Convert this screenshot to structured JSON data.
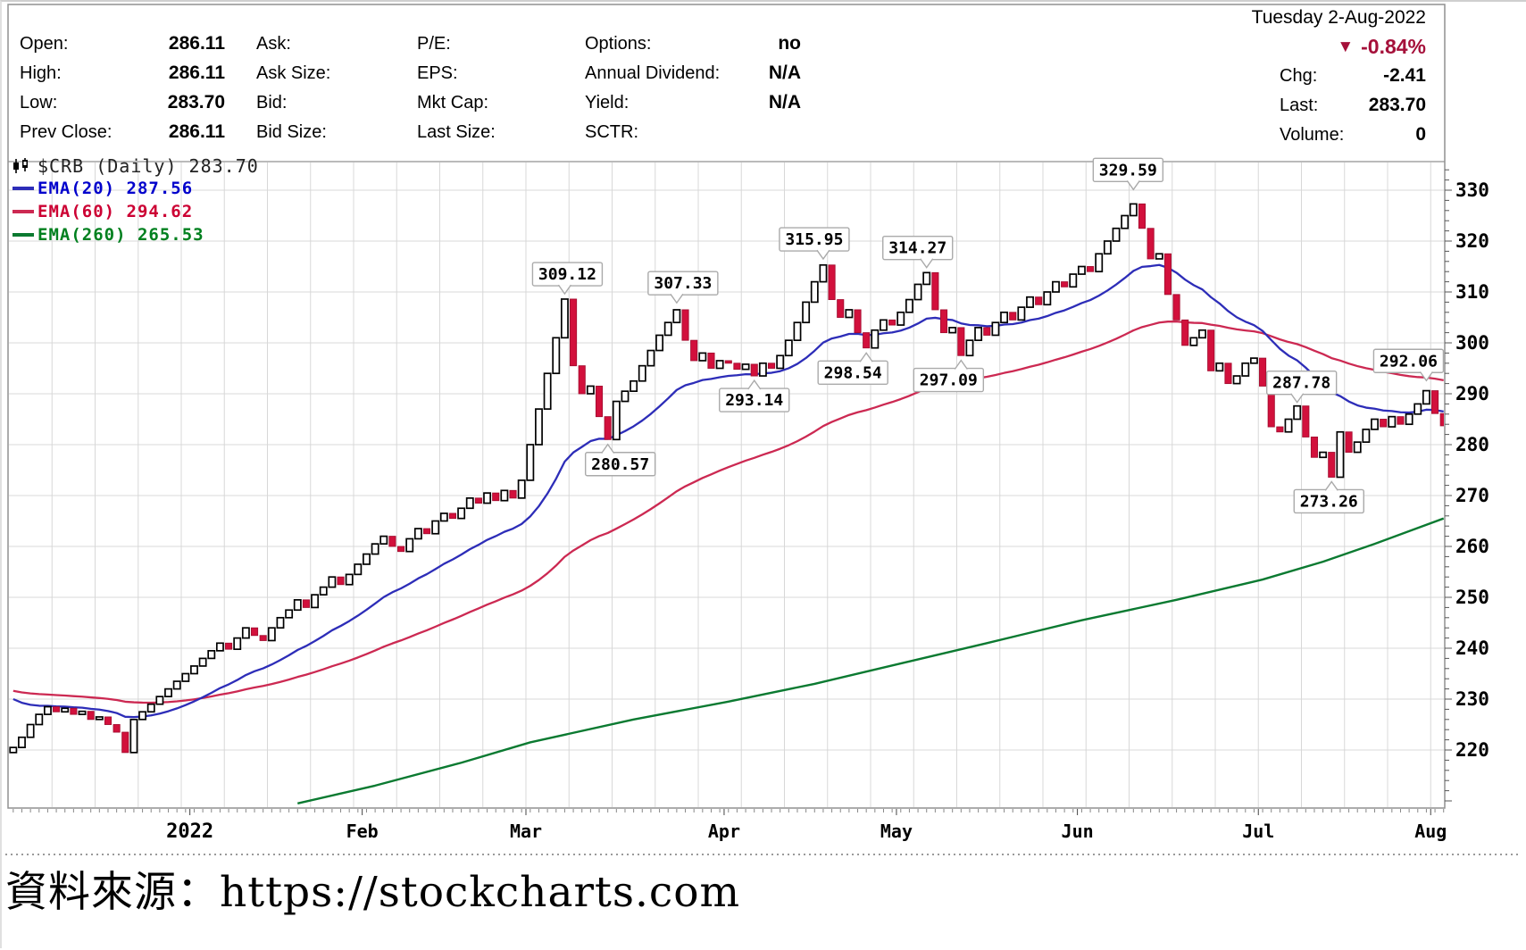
{
  "header": {
    "date": "Tuesday 2-Aug-2022",
    "change_pct": "-0.84%",
    "down_color": "#a5103a",
    "chg_label": "Chg:",
    "chg_value": "-2.41",
    "last_label": "Last:",
    "last_value": "283.70",
    "volume_label": "Volume:",
    "volume_value": "0",
    "quote_fields": [
      {
        "label": "Open:",
        "value": "286.11"
      },
      {
        "label": "High:",
        "value": "286.11"
      },
      {
        "label": "Low:",
        "value": "283.70"
      },
      {
        "label": "Prev Close:",
        "value": "286.11"
      },
      {
        "label": "Ask:",
        "value": ""
      },
      {
        "label": "Ask Size:",
        "value": ""
      },
      {
        "label": "Bid:",
        "value": ""
      },
      {
        "label": "Bid Size:",
        "value": ""
      },
      {
        "label": "P/E:",
        "value": ""
      },
      {
        "label": "EPS:",
        "value": ""
      },
      {
        "label": "Mkt Cap:",
        "value": ""
      },
      {
        "label": "Last Size:",
        "value": ""
      },
      {
        "label": "Options:",
        "value": "no"
      },
      {
        "label": "Annual Dividend:",
        "value": "N/A"
      },
      {
        "label": "Yield:",
        "value": "N/A"
      },
      {
        "label": "SCTR:",
        "value": ""
      }
    ]
  },
  "chart_data": {
    "type": "candlestick",
    "symbol_title": "$CRB (Daily) 283.70",
    "legend": [
      {
        "label": "EMA(20) 287.56",
        "color": "#0000cc",
        "line_color": "#2d2db8"
      },
      {
        "label": "EMA(60) 294.62",
        "color": "#cc0033",
        "line_color": "#cc2952"
      },
      {
        "label": "EMA(260) 265.53",
        "color": "#00801f",
        "line_color": "#0b7a31"
      }
    ],
    "first_open": 219.5,
    "closes": [
      220.5,
      222.5,
      225,
      227,
      228.5,
      227.5,
      228.2,
      227,
      227.6,
      226,
      226.5,
      225,
      223.5,
      219.5,
      226,
      227.5,
      229,
      230.5,
      232,
      233.5,
      235,
      236.5,
      238,
      239.5,
      241,
      239.8,
      242,
      244,
      242.5,
      241.5,
      244,
      246,
      247.5,
      249.5,
      248,
      250.5,
      252,
      254,
      252.5,
      254.5,
      256.5,
      258.5,
      260.5,
      262,
      260,
      259,
      261.5,
      263.5,
      262.5,
      265,
      266.5,
      265.5,
      267.5,
      269.5,
      268.5,
      270.5,
      269,
      271,
      269.5,
      273,
      280,
      287,
      294,
      301,
      308.6,
      295.5,
      290,
      291.5,
      285.5,
      281,
      288.5,
      290.5,
      292.5,
      295.5,
      298.5,
      301.5,
      304,
      306.5,
      300.5,
      296.5,
      298,
      295,
      296.5,
      296,
      294.8,
      295.8,
      293.5,
      296,
      295,
      297.5,
      300.5,
      304,
      308,
      312,
      315.3,
      308.5,
      305,
      306.5,
      302,
      299,
      302.5,
      304.5,
      303.5,
      306,
      308.5,
      311.5,
      313.8,
      306.5,
      302,
      303,
      297.5,
      300.5,
      303,
      301.5,
      304,
      306,
      304.5,
      307,
      309,
      307.5,
      310,
      312,
      311,
      313.5,
      315,
      314,
      317.5,
      320,
      322.5,
      325,
      327.3,
      322.5,
      316.5,
      317.5,
      309.5,
      304.5,
      299.5,
      301,
      302.5,
      294.5,
      296,
      292,
      293.5,
      296,
      297,
      291.5,
      283.5,
      282.5,
      285,
      287.6,
      281.5,
      277.5,
      278.5,
      273.6,
      282.5,
      278.5,
      280.5,
      283,
      285,
      283.5,
      285.5,
      284,
      286,
      288,
      290.6,
      286.11,
      283.7
    ],
    "ema_overlays": [
      {
        "name": "EMA(20)",
        "period": 20,
        "seed": 231.0
      },
      {
        "name": "EMA(60)",
        "period": 60,
        "seed": 232.0
      }
    ],
    "ema260_points": [
      [
        33,
        209.5
      ],
      [
        42,
        213
      ],
      [
        52,
        217.5
      ],
      [
        60,
        221.5
      ],
      [
        72,
        226
      ],
      [
        83,
        229.5
      ],
      [
        93,
        233
      ],
      [
        103,
        237
      ],
      [
        113,
        241
      ],
      [
        124,
        245.5
      ],
      [
        135,
        249.5
      ],
      [
        145,
        253.5
      ],
      [
        152,
        257
      ],
      [
        158,
        260.5
      ],
      [
        162,
        263
      ],
      [
        166,
        265.5
      ]
    ],
    "annotations": [
      {
        "day": 64,
        "text": "309.12",
        "value": 309.12,
        "side": "above",
        "dx": 3
      },
      {
        "day": 69,
        "text": "280.57",
        "value": 280.57,
        "side": "below",
        "dx": 14
      },
      {
        "day": 77,
        "text": "307.33",
        "value": 307.33,
        "side": "above",
        "dx": 7
      },
      {
        "day": 86,
        "text": "293.14",
        "value": 293.14,
        "side": "below",
        "dx": 0
      },
      {
        "day": 94,
        "text": "315.95",
        "value": 315.95,
        "side": "above",
        "dx": -10
      },
      {
        "day": 99,
        "text": "298.54",
        "value": 298.54,
        "side": "below",
        "dx": -15
      },
      {
        "day": 106,
        "text": "314.27",
        "value": 314.27,
        "side": "above",
        "dx": -10
      },
      {
        "day": 110,
        "text": "297.09",
        "value": 297.09,
        "side": "below",
        "dx": -14
      },
      {
        "day": 130,
        "text": "329.59",
        "value": 329.59,
        "side": "above",
        "dx": -6
      },
      {
        "day": 149,
        "text": "287.78",
        "value": 287.78,
        "side": "above",
        "dx": 5
      },
      {
        "day": 153,
        "text": "273.26",
        "value": 273.26,
        "side": "below",
        "dx": -3
      },
      {
        "day": 164,
        "text": "292.06",
        "value": 292.06,
        "side": "above",
        "dx": -20
      }
    ],
    "x_ticks": [
      {
        "label": "2022",
        "day": 21,
        "year": true
      },
      {
        "label": "Feb",
        "day": 41
      },
      {
        "label": "Mar",
        "day": 60
      },
      {
        "label": "Apr",
        "day": 83
      },
      {
        "label": "May",
        "day": 103
      },
      {
        "label": "Jun",
        "day": 124
      },
      {
        "label": "Jul",
        "day": 145
      },
      {
        "label": "Aug",
        "day": 165
      }
    ],
    "y_ticks": [
      220,
      230,
      240,
      250,
      260,
      270,
      280,
      290,
      300,
      310,
      320,
      330
    ],
    "ylim": [
      204,
      337
    ],
    "colors": {
      "up_candle": "#ffffff",
      "down_candle": "#d2103c",
      "candle_outline": "#000000",
      "grid": "#d8d8d8",
      "frame": "#909090",
      "axis_text": "#000000",
      "callout_border": "#aaaaaa"
    }
  },
  "caption": {
    "text": "資料來源：https://stockcharts.com"
  }
}
